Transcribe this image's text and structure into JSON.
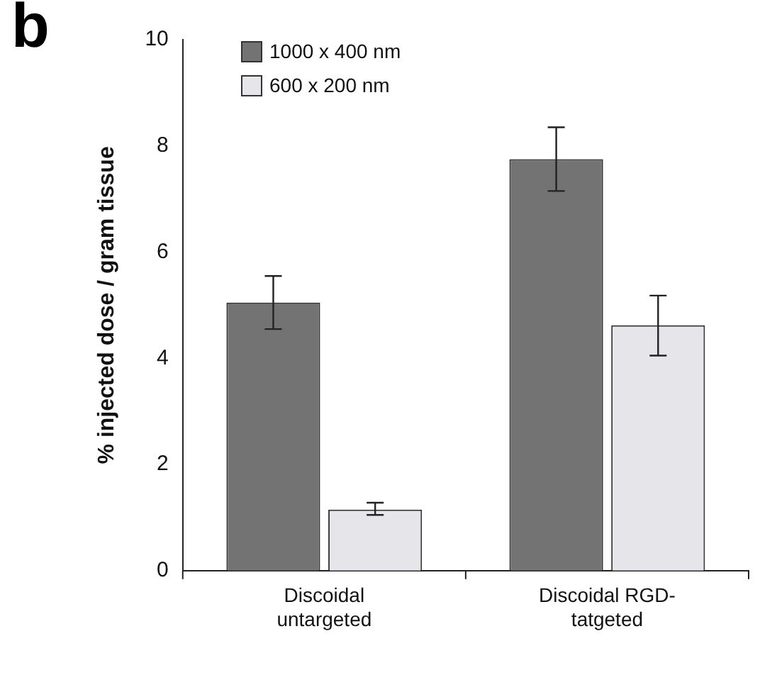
{
  "chart_data": {
    "type": "bar",
    "title": "b",
    "ylabel": "% injected dose / gram tissue",
    "categories": [
      "Discoidal\nuntargeted",
      "Discoidal RGD-\ntatgeted"
    ],
    "series": [
      {
        "name": "1000 x 400 nm",
        "color": "#737373",
        "values": [
          5.05,
          7.75
        ],
        "errors": [
          [
            4.55,
            5.55
          ],
          [
            7.15,
            8.35
          ]
        ]
      },
      {
        "name": "600 x 200 nm",
        "color": "#e6e6ea",
        "values": [
          1.15,
          4.62
        ],
        "errors": [
          [
            1.05,
            1.28
          ],
          [
            4.05,
            5.18
          ]
        ]
      }
    ],
    "ylim": [
      0,
      10
    ],
    "yticks": [
      0,
      2,
      4,
      6,
      8,
      10
    ],
    "grid": false,
    "legend": "top left"
  }
}
